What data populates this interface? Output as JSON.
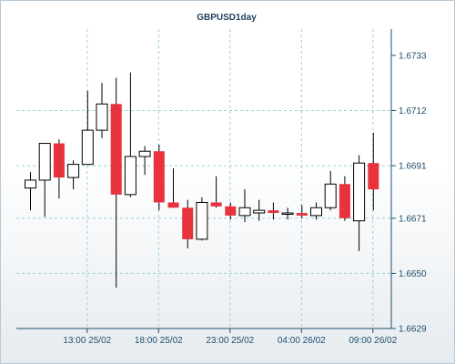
{
  "chart_data": {
    "type": "candlestick",
    "title": "GBPUSD1day",
    "ylim": [
      1.6629,
      1.6743
    ],
    "y_ticks": [
      "1.6733",
      "1.6712",
      "1.6691",
      "1.6671",
      "1.6650",
      "1.6629"
    ],
    "x_ticks": [
      "13:00 25/02",
      "18:00 25/02",
      "23:00 25/02",
      "04:00 26/02",
      "09:00 26/02"
    ],
    "grid": true,
    "colors": {
      "up": "#ffffff",
      "down": "#e8333c",
      "wick": "#000000",
      "grid": "#9ccfd0",
      "axis": "#1f4e6e"
    },
    "candles": [
      {
        "o": 1.66825,
        "h": 1.66885,
        "l": 1.6674,
        "c": 1.66855
      },
      {
        "o": 1.66855,
        "h": 1.66995,
        "l": 1.66715,
        "c": 1.66995
      },
      {
        "o": 1.66995,
        "h": 1.6701,
        "l": 1.66785,
        "c": 1.66865
      },
      {
        "o": 1.66865,
        "h": 1.6693,
        "l": 1.6682,
        "c": 1.66915
      },
      {
        "o": 1.66915,
        "h": 1.67195,
        "l": 1.66915,
        "c": 1.67045
      },
      {
        "o": 1.67045,
        "h": 1.67225,
        "l": 1.67015,
        "c": 1.67145
      },
      {
        "o": 1.67145,
        "h": 1.67245,
        "l": 1.66445,
        "c": 1.668
      },
      {
        "o": 1.668,
        "h": 1.67265,
        "l": 1.6679,
        "c": 1.66945
      },
      {
        "o": 1.66945,
        "h": 1.66985,
        "l": 1.66875,
        "c": 1.66965
      },
      {
        "o": 1.66965,
        "h": 1.6699,
        "l": 1.6674,
        "c": 1.6677
      },
      {
        "o": 1.6677,
        "h": 1.669,
        "l": 1.6675,
        "c": 1.6675
      },
      {
        "o": 1.6675,
        "h": 1.6678,
        "l": 1.66595,
        "c": 1.6663
      },
      {
        "o": 1.6663,
        "h": 1.6679,
        "l": 1.66625,
        "c": 1.6677
      },
      {
        "o": 1.6677,
        "h": 1.6687,
        "l": 1.6675,
        "c": 1.66755
      },
      {
        "o": 1.66755,
        "h": 1.6677,
        "l": 1.66705,
        "c": 1.6672
      },
      {
        "o": 1.6672,
        "h": 1.6682,
        "l": 1.66695,
        "c": 1.6675
      },
      {
        "o": 1.6673,
        "h": 1.6678,
        "l": 1.667,
        "c": 1.6674
      },
      {
        "o": 1.6674,
        "h": 1.6677,
        "l": 1.66705,
        "c": 1.6673
      },
      {
        "o": 1.6673,
        "h": 1.6675,
        "l": 1.66705,
        "c": 1.6673
      },
      {
        "o": 1.6673,
        "h": 1.6676,
        "l": 1.6671,
        "c": 1.6672
      },
      {
        "o": 1.6672,
        "h": 1.6677,
        "l": 1.66705,
        "c": 1.6675
      },
      {
        "o": 1.6675,
        "h": 1.6689,
        "l": 1.6674,
        "c": 1.6684
      },
      {
        "o": 1.6684,
        "h": 1.6687,
        "l": 1.667,
        "c": 1.6671
      },
      {
        "o": 1.667,
        "h": 1.6695,
        "l": 1.66585,
        "c": 1.6692
      },
      {
        "o": 1.6692,
        "h": 1.67035,
        "l": 1.6674,
        "c": 1.6682
      }
    ]
  }
}
